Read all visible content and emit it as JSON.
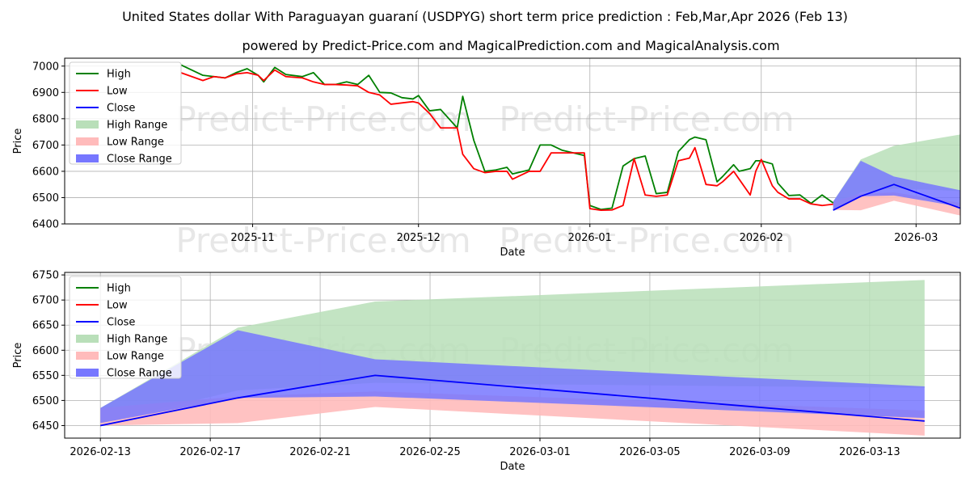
{
  "title_line1": "United States dollar With Paraguayan guaraní (USDPYG) short term price prediction : Feb,Mar,Apr 2026 (Feb 13)",
  "title_line2": "powered by Predict-Price.com and MagicalPrediction.com and MagicalAnalysis.com",
  "watermark": "Predict-Price.com",
  "colors": {
    "high": "#008000",
    "low": "#ff0000",
    "close": "#0000ff",
    "high_range": "#b9dfb9",
    "low_range": "#ffbbbb",
    "close_range": "#7777ff"
  },
  "legend": [
    "High",
    "Low",
    "Close",
    "High Range",
    "Low Range",
    "Close Range"
  ],
  "chart_data": [
    {
      "type": "line",
      "xlabel": "Date",
      "ylabel": "Price",
      "xlim": [
        -21,
        141
      ],
      "ylim": [
        6400,
        7030
      ],
      "yticks": [
        6400,
        6500,
        6600,
        6700,
        6800,
        6900,
        7000
      ],
      "xtick_positions": [
        13,
        43,
        74,
        105,
        133
      ],
      "xtick_labels": [
        "2025-11",
        "2025-12",
        "2026-01",
        "2026-02",
        "2026-03"
      ],
      "x_note": "days since 2025-10-19",
      "series": [
        {
          "name": "High",
          "x": [
            0,
            2,
            4,
            6,
            8,
            10,
            12,
            14,
            15,
            17,
            19,
            22,
            24,
            26,
            28,
            30,
            32,
            34,
            36,
            38,
            40,
            42,
            43,
            45,
            47,
            50,
            51,
            53,
            55,
            57,
            59,
            60,
            63,
            65,
            67,
            69,
            71,
            73,
            74,
            76,
            78,
            80,
            82,
            84,
            86,
            88,
            90,
            92,
            93,
            95,
            97,
            98,
            100,
            101,
            103,
            104,
            105,
            107,
            108,
            110,
            112,
            114,
            116,
            118
          ],
          "y": [
            7005,
            6985,
            6965,
            6960,
            6955,
            6975,
            6990,
            6965,
            6940,
            6995,
            6968,
            6960,
            6975,
            6930,
            6930,
            6940,
            6930,
            6965,
            6900,
            6898,
            6880,
            6875,
            6888,
            6830,
            6835,
            6765,
            6885,
            6718,
            6600,
            6605,
            6615,
            6590,
            6605,
            6700,
            6700,
            6680,
            6670,
            6660,
            6470,
            6455,
            6460,
            6620,
            6648,
            6658,
            6515,
            6520,
            6675,
            6720,
            6730,
            6720,
            6560,
            6580,
            6625,
            6600,
            6610,
            6640,
            6640,
            6628,
            6555,
            6508,
            6510,
            6478,
            6510,
            6480
          ]
        },
        {
          "name": "Low",
          "x": [
            0,
            2,
            4,
            6,
            8,
            10,
            12,
            14,
            15,
            17,
            19,
            22,
            24,
            26,
            28,
            30,
            32,
            34,
            36,
            38,
            40,
            42,
            43,
            45,
            47,
            50,
            51,
            53,
            55,
            57,
            59,
            60,
            63,
            65,
            67,
            69,
            71,
            73,
            74,
            76,
            78,
            80,
            82,
            84,
            86,
            88,
            90,
            92,
            93,
            95,
            97,
            98,
            100,
            101,
            103,
            104,
            105,
            107,
            108,
            110,
            112,
            114,
            116,
            118
          ],
          "y": [
            6975,
            6960,
            6945,
            6960,
            6955,
            6970,
            6975,
            6965,
            6945,
            6985,
            6960,
            6955,
            6940,
            6930,
            6930,
            6928,
            6925,
            6900,
            6890,
            6855,
            6860,
            6865,
            6860,
            6820,
            6765,
            6765,
            6665,
            6610,
            6595,
            6600,
            6600,
            6570,
            6600,
            6600,
            6670,
            6670,
            6670,
            6670,
            6458,
            6452,
            6453,
            6470,
            6648,
            6510,
            6505,
            6510,
            6640,
            6650,
            6690,
            6550,
            6545,
            6560,
            6600,
            6570,
            6510,
            6600,
            6645,
            6545,
            6520,
            6495,
            6495,
            6476,
            6470,
            6475
          ]
        },
        {
          "name": "Close",
          "x": [
            118,
            123,
            129,
            141
          ],
          "y": [
            6452,
            6505,
            6550,
            6460
          ]
        },
        {
          "name": "High Range",
          "x": [
            118,
            123,
            129,
            141
          ],
          "upper": [
            6485,
            6645,
            6697,
            6740
          ],
          "lower": [
            6455,
            6520,
            6535,
            6525
          ]
        },
        {
          "name": "Low Range",
          "x": [
            118,
            123,
            129,
            141
          ],
          "upper": [
            6485,
            6515,
            6520,
            6480
          ],
          "lower": [
            6453,
            6452,
            6488,
            6432
          ]
        },
        {
          "name": "Close Range",
          "x": [
            118,
            123,
            129,
            141
          ],
          "upper": [
            6485,
            6640,
            6580,
            6528
          ],
          "lower": [
            6455,
            6505,
            6508,
            6465
          ]
        }
      ]
    },
    {
      "type": "line",
      "xlabel": "Date",
      "ylabel": "Price",
      "xlim": [
        -1.3,
        31.3
      ],
      "ylim": [
        6425,
        6755
      ],
      "yticks": [
        6450,
        6500,
        6550,
        6600,
        6650,
        6700,
        6750
      ],
      "xtick_positions": [
        0,
        4,
        8,
        12,
        16,
        20,
        24,
        28
      ],
      "xtick_labels": [
        "2026-02-13",
        "2026-02-17",
        "2026-02-21",
        "2026-02-25",
        "2026-03-01",
        "2026-03-05",
        "2026-03-09",
        "2026-03-13"
      ],
      "x_note": "days since 2026-02-13",
      "series": [
        {
          "name": "Close",
          "x": [
            0,
            5,
            10,
            30
          ],
          "y": [
            6450,
            6505,
            6550,
            6459
          ]
        },
        {
          "name": "High Range",
          "x": [
            0,
            5,
            10,
            30
          ],
          "upper": [
            6485,
            6645,
            6697,
            6740
          ],
          "lower": [
            6455,
            6520,
            6535,
            6525
          ]
        },
        {
          "name": "Low Range",
          "x": [
            0,
            5,
            10,
            30
          ],
          "upper": [
            6485,
            6508,
            6518,
            6480
          ],
          "lower": [
            6450,
            6455,
            6487,
            6430
          ]
        },
        {
          "name": "Close Range",
          "x": [
            0,
            5,
            10,
            30
          ],
          "upper": [
            6485,
            6640,
            6582,
            6528
          ],
          "lower": [
            6455,
            6505,
            6508,
            6465
          ]
        }
      ]
    }
  ]
}
